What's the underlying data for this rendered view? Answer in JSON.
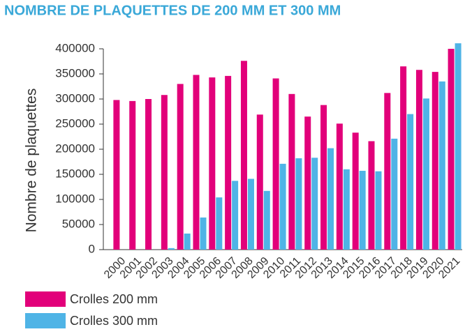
{
  "chart_data": {
    "type": "bar",
    "title": "NOMBRE DE PLAQUETTES DE 200 MM ET 300 MM",
    "y_label": "Nombre de plaquettes",
    "categories": [
      "2000",
      "2001",
      "2002",
      "2003",
      "2004",
      "2005",
      "2006",
      "2007",
      "2008",
      "2009",
      "2010",
      "2011",
      "2012",
      "2013",
      "2014",
      "2015",
      "2016",
      "2017",
      "2018",
      "2019",
      "2020",
      "2021"
    ],
    "series": [
      {
        "name": "Crolles 200 mm",
        "color": "#e2007a",
        "values": [
          298000,
          296000,
          300000,
          308000,
          330000,
          348000,
          343000,
          346000,
          376000,
          269000,
          341000,
          310000,
          265000,
          288000,
          251000,
          233000,
          216000,
          312000,
          365000,
          358000,
          354000,
          400000
        ]
      },
      {
        "name": "Crolles 300 mm",
        "color": "#4fb4e6",
        "values": [
          0,
          0,
          0,
          3000,
          32000,
          64000,
          104000,
          137000,
          141000,
          117000,
          171000,
          182000,
          183000,
          202000,
          160000,
          157000,
          156000,
          221000,
          270000,
          301000,
          335000,
          411000
        ]
      }
    ],
    "ylim": [
      0,
      400000
    ],
    "yticks": [
      0,
      50000,
      100000,
      150000,
      200000,
      250000,
      300000,
      350000,
      400000
    ],
    "grid": false,
    "legend": "bottom-left"
  }
}
